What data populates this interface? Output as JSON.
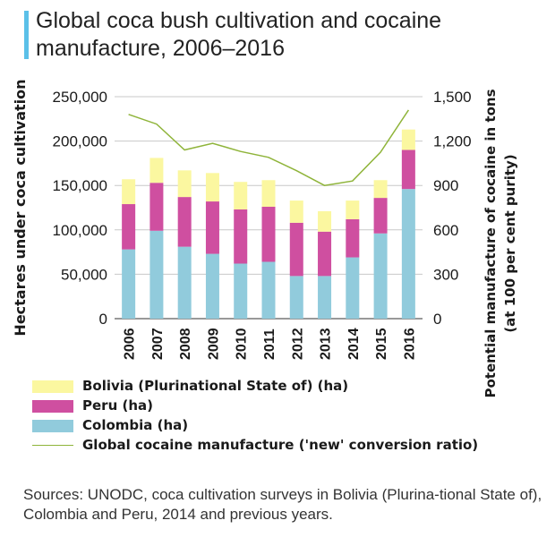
{
  "title": "Global coca bush cultivation and cocaine manufacture, 2006–2016",
  "source_note": "Sources: UNODC, coca cultivation surveys in Bolivia (Plurina-tional State of), Colombia and Peru, 2014 and previous years.",
  "colors": {
    "bolivia": "#fbf7a0",
    "peru": "#cf4fa0",
    "colombia": "#91cbdc",
    "line": "#8fb43a",
    "accent_bar": "#5bc0e8"
  },
  "chart_data": {
    "type": "bar",
    "stacked": true,
    "categories": [
      "2006",
      "2007",
      "2008",
      "2009",
      "2010",
      "2011",
      "2012",
      "2013",
      "2014",
      "2015",
      "2016"
    ],
    "series": [
      {
        "name": "Colombia (ha)",
        "values": [
          78000,
          99000,
          81000,
          73000,
          62000,
          64000,
          48000,
          48000,
          69000,
          96000,
          146000
        ]
      },
      {
        "name": "Peru (ha)",
        "values": [
          51000,
          54000,
          56000,
          59000,
          61000,
          62000,
          60000,
          50000,
          43000,
          40000,
          44000
        ]
      },
      {
        "name": "Bolivia (Plurinational State of) (ha)",
        "values": [
          28000,
          28000,
          30000,
          32000,
          31000,
          30000,
          25000,
          23000,
          21000,
          20000,
          23000
        ]
      }
    ],
    "line_series": {
      "name": "Global cocaine manufacture ('new' conversion ratio)",
      "axis": "right",
      "values": [
        1380,
        1315,
        1140,
        1185,
        1130,
        1090,
        1000,
        900,
        930,
        1125,
        1410
      ]
    },
    "ylabel": "Hectares under coca cultivation",
    "ylabel_right": "Potential manufacture  of cocaine in tons (at 100 per cent  purity)",
    "ylim": [
      0,
      250000
    ],
    "ylim_right": [
      0,
      1500
    ],
    "yticks": [
      "0",
      "50,000",
      "100,000",
      "150,000",
      "200,000",
      "250,000"
    ],
    "yticks_right": [
      "0",
      "300",
      "600",
      "900",
      "1,200",
      "1,500"
    ],
    "grid": true
  },
  "legend": [
    {
      "key": "bolivia",
      "kind": "swatch",
      "label": "Bolivia (Plurinational State of) (ha)"
    },
    {
      "key": "peru",
      "kind": "swatch",
      "label": "Peru (ha)"
    },
    {
      "key": "colombia",
      "kind": "swatch",
      "label": "Colombia (ha)"
    },
    {
      "key": "line",
      "kind": "line",
      "label": "Global cocaine manufacture ('new' conversion ratio)"
    }
  ]
}
